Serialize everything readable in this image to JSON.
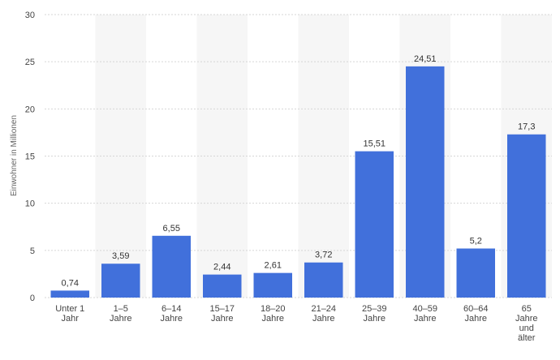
{
  "chart_data": {
    "type": "bar",
    "y_label": "Einwohner in Millionen",
    "categories": [
      "Unter 1\nJahr",
      "1–5\nJahre",
      "6–14\nJahre",
      "15–17\nJahre",
      "18–20\nJahre",
      "21–24\nJahre",
      "25–39\nJahre",
      "40–59\nJahre",
      "60–64\nJahre",
      "65\nJahre\nund\nälter"
    ],
    "values": [
      0.74,
      3.59,
      6.55,
      2.44,
      2.61,
      3.72,
      15.51,
      24.51,
      5.2,
      17.3
    ],
    "value_labels": [
      "0,74",
      "3,59",
      "6,55",
      "2,44",
      "2,61",
      "3,72",
      "15,51",
      "24,51",
      "5,2",
      "17,3"
    ],
    "color": "#4170db",
    "ylim": [
      0,
      30
    ],
    "yticks": [
      0,
      5,
      10,
      15,
      20,
      25,
      30
    ],
    "grid": true
  }
}
